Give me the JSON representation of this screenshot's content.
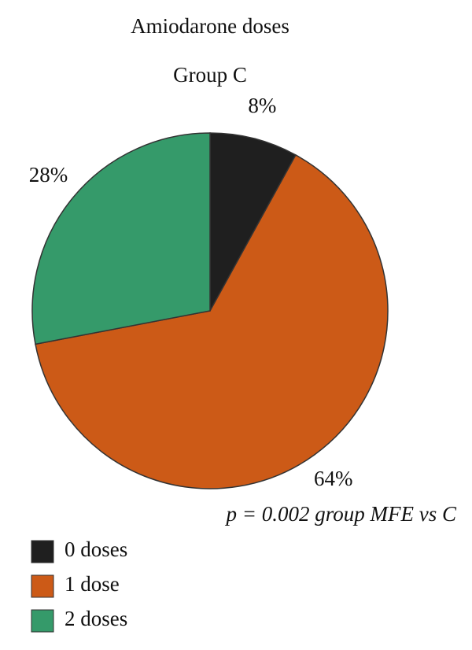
{
  "chart_data": {
    "type": "pie",
    "title": "Amiodarone doses",
    "subtitle": "Group C",
    "categories": [
      "0 doses",
      "1 dose",
      "2 doses"
    ],
    "values": [
      8,
      64,
      28
    ],
    "value_labels": [
      "8%",
      "64%",
      "28%"
    ],
    "colors": [
      "#1f1f1f",
      "#cc5a17",
      "#359a6a"
    ],
    "annotation": "p = 0.002 group MFE vs C"
  }
}
